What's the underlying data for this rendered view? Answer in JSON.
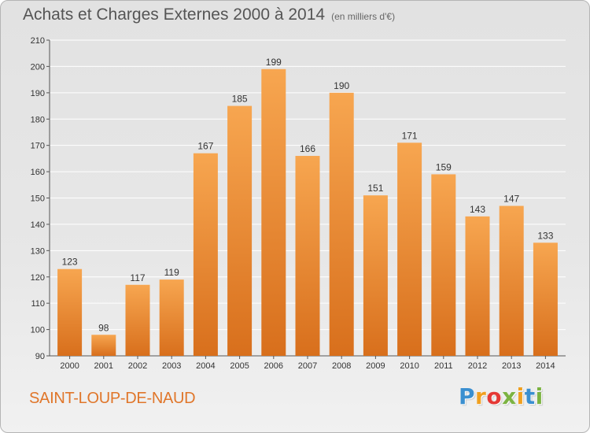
{
  "title": "Achats et Charges Externes 2000 à 2014",
  "unit": "(en milliers d'€)",
  "place": "SAINT-LOUP-DE-NAUD",
  "brand": {
    "letters": [
      "P",
      "r",
      "o",
      "x",
      "i",
      "t",
      "i"
    ],
    "colors": [
      "#3a8fd0",
      "#f0a020",
      "#e53935",
      "#7cb342",
      "#f0a020",
      "#3a8fd0",
      "#7cb342"
    ]
  },
  "colors": {
    "bar_light": "#f7a650",
    "bar_dark": "#d86f1c",
    "grid": "#ffffff",
    "axis": "#555555"
  },
  "chart_data": {
    "type": "bar",
    "categories": [
      "2000",
      "2001",
      "2002",
      "2003",
      "2004",
      "2005",
      "2006",
      "2007",
      "2008",
      "2009",
      "2010",
      "2011",
      "2012",
      "2013",
      "2014"
    ],
    "values": [
      123,
      98,
      117,
      119,
      167,
      185,
      199,
      166,
      190,
      151,
      171,
      159,
      143,
      147,
      133
    ],
    "title": "Achats et Charges Externes 2000 à 2014",
    "xlabel": "",
    "ylabel": "",
    "ylim": [
      90,
      210
    ],
    "yticks": [
      90,
      100,
      110,
      120,
      130,
      140,
      150,
      160,
      170,
      180,
      190,
      200,
      210
    ],
    "grid": true,
    "data_labels": true
  }
}
